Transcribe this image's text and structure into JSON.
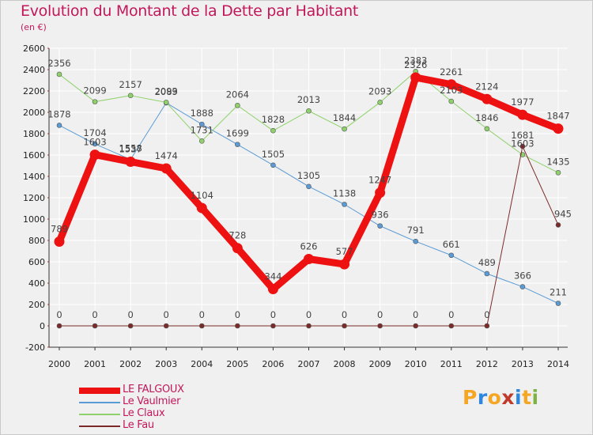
{
  "title": "Evolution du Montant de la Dette par Habitant",
  "subtitle": "(en €)",
  "brand": {
    "text": "Proxiti",
    "colors": [
      "#f5a623",
      "#2e86de",
      "#f5a623",
      "#c0392b",
      "#2e86de",
      "#f5a623",
      "#7cb342"
    ]
  },
  "colors": {
    "title": "#c2185b",
    "background": "#f0f0f0",
    "grid": "#ffffff",
    "axis": "#333333"
  },
  "chart_data": {
    "type": "line",
    "x": [
      "2000",
      "2001",
      "2002",
      "2003",
      "2004",
      "2005",
      "2006",
      "2007",
      "2008",
      "2009",
      "2010",
      "2011",
      "2012",
      "2013",
      "2014"
    ],
    "ylim": [
      -200,
      2600
    ],
    "yticks": [
      "-200",
      "0",
      "200",
      "400",
      "600",
      "800",
      "1000",
      "1200",
      "1400",
      "1600",
      "1800",
      "2000",
      "2200",
      "2400",
      "2600"
    ],
    "grid": true,
    "legend_position": "bottom-left",
    "series": [
      {
        "name": "Le Vaulmier",
        "color": "#5b9bd5",
        "values": [
          1878,
          1704,
          1558,
          2089,
          1888,
          1699,
          1505,
          1305,
          1138,
          936,
          791,
          661,
          489,
          366,
          211
        ],
        "labels": [
          "1878",
          "1704",
          "1558",
          "2089",
          "1888",
          "1699",
          "1505",
          "1305",
          "1138",
          "936",
          "791",
          "661",
          "489",
          "366",
          "211"
        ]
      },
      {
        "name": "Le Claux",
        "color": "#8fd16b",
        "values": [
          2356,
          2099,
          2157,
          2093,
          1731,
          2064,
          1828,
          2013,
          1844,
          2093,
          2383,
          2103,
          1846,
          1603,
          1435
        ],
        "labels": [
          "2356",
          "2099",
          "2157",
          "2093",
          "1731",
          "2064",
          "1828",
          "2013",
          "1844",
          "2093",
          "2383",
          "2103",
          "1846",
          "1603",
          "1435"
        ]
      },
      {
        "name": "Le Fau",
        "color": "#7b2a2a",
        "values": [
          0,
          0,
          0,
          0,
          0,
          0,
          0,
          0,
          0,
          0,
          0,
          0,
          0,
          1681,
          945
        ],
        "labels": [
          "0",
          "0",
          "0",
          "0",
          "0",
          "0",
          "0",
          "0",
          "0",
          "0",
          "0",
          "0",
          "0",
          "1681",
          "945"
        ]
      },
      {
        "name": "LE FALGOUX",
        "color": "#ee1111",
        "values": [
          789,
          1603,
          1537,
          1474,
          1104,
          728,
          344,
          626,
          577,
          1247,
          2326,
          2261,
          2124,
          1977,
          1847
        ],
        "labels": [
          "789",
          "1603",
          "1537",
          "1474",
          "1104",
          "728",
          "344",
          "626",
          "577",
          "1247",
          "2326",
          "2261",
          "2124",
          "1977",
          "1847"
        ]
      }
    ],
    "legend": [
      "LE FALGOUX",
      "Le Vaulmier",
      "Le Claux",
      "Le Fau"
    ]
  }
}
